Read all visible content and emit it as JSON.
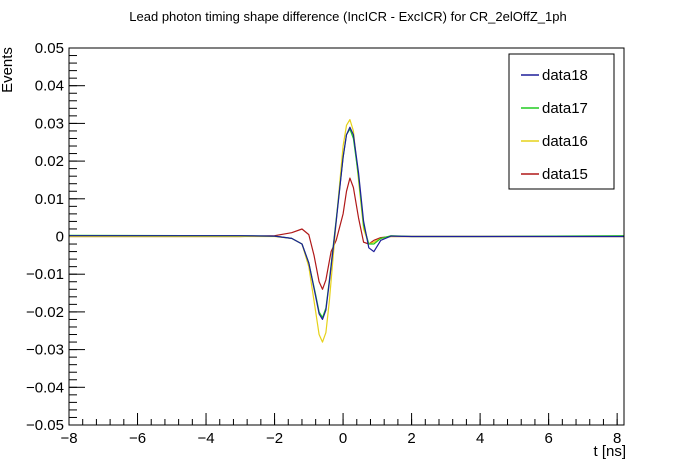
{
  "chart_data": {
    "type": "line",
    "title": "Lead photon timing shape difference (IncICR - ExcICR) for CR_2elOffZ_1ph",
    "xlabel": "t [ns]",
    "ylabel": "Events",
    "xlim": [
      -8,
      8.2
    ],
    "ylim": [
      -0.05,
      0.05
    ],
    "x_ticks": [
      -8,
      -6,
      -4,
      -2,
      0,
      2,
      4,
      6,
      8
    ],
    "y_ticks": [
      -0.05,
      -0.04,
      -0.03,
      -0.02,
      -0.01,
      0,
      0.01,
      0.02,
      0.03,
      0.04,
      0.05
    ],
    "x_tick_labels": [
      "−8",
      "−6",
      "−4",
      "−2",
      "0",
      "2",
      "4",
      "6",
      "8"
    ],
    "y_tick_labels": [
      "−0.05",
      "−0.04",
      "−0.03",
      "−0.02",
      "−0.01",
      "0",
      "0.01",
      "0.02",
      "0.03",
      "0.04",
      "0.05"
    ],
    "grid": false,
    "legend_position": "top-right",
    "series": [
      {
        "name": "data18",
        "color": "#1e1e9a",
        "x": [
          -8,
          -3,
          -2,
          -1.5,
          -1.2,
          -1.0,
          -0.8,
          -0.7,
          -0.6,
          -0.5,
          -0.4,
          -0.2,
          0,
          0.1,
          0.2,
          0.3,
          0.45,
          0.6,
          0.75,
          0.9,
          1.1,
          1.4,
          2,
          4,
          8.2
        ],
        "y": [
          0.0002,
          0.0002,
          0.0001,
          -0.0005,
          -0.002,
          -0.007,
          -0.016,
          -0.0205,
          -0.022,
          -0.0195,
          -0.012,
          0.004,
          0.021,
          0.027,
          0.029,
          0.027,
          0.017,
          0.004,
          -0.003,
          -0.004,
          -0.001,
          0.0001,
          0,
          0,
          0
        ]
      },
      {
        "name": "data17",
        "color": "#22cc22",
        "x": [
          -8,
          -3,
          -2,
          -1.5,
          -1.2,
          -1.0,
          -0.8,
          -0.7,
          -0.6,
          -0.5,
          -0.4,
          -0.2,
          0,
          0.1,
          0.2,
          0.3,
          0.45,
          0.6,
          0.75,
          0.9,
          1.1,
          1.4,
          2,
          4,
          8.2
        ],
        "y": [
          0.0003,
          0.0002,
          0.0001,
          -0.0005,
          -0.002,
          -0.007,
          -0.0155,
          -0.02,
          -0.0215,
          -0.019,
          -0.0115,
          0.0045,
          0.021,
          0.027,
          0.0285,
          0.026,
          0.016,
          0.003,
          -0.002,
          -0.002,
          -0.0005,
          0.0002,
          0,
          0,
          0.0002
        ]
      },
      {
        "name": "data16",
        "color": "#e6d21a",
        "x": [
          -8,
          -3,
          -2,
          -1.5,
          -1.2,
          -1.0,
          -0.8,
          -0.7,
          -0.6,
          -0.5,
          -0.4,
          -0.2,
          0,
          0.1,
          0.2,
          0.3,
          0.45,
          0.6,
          0.75,
          0.9,
          1.1,
          1.4,
          2,
          4,
          8.2
        ],
        "y": [
          0,
          0,
          0,
          -0.0005,
          -0.002,
          -0.008,
          -0.02,
          -0.026,
          -0.028,
          -0.0255,
          -0.017,
          0.004,
          0.024,
          0.0295,
          0.031,
          0.028,
          0.015,
          0.002,
          -0.002,
          -0.0015,
          -0.0005,
          0,
          0,
          0,
          0
        ]
      },
      {
        "name": "data15",
        "color": "#b01818",
        "x": [
          -8,
          -3,
          -2,
          -1.5,
          -1.2,
          -1.0,
          -0.85,
          -0.7,
          -0.6,
          -0.5,
          -0.35,
          -0.2,
          0,
          0.1,
          0.2,
          0.3,
          0.45,
          0.6,
          0.75,
          0.9,
          1.1,
          1.4,
          2,
          4,
          8.2
        ],
        "y": [
          0,
          0,
          0.0002,
          0.001,
          0.002,
          0.0005,
          -0.005,
          -0.012,
          -0.014,
          -0.0115,
          -0.004,
          -0.001,
          0.006,
          0.012,
          0.0155,
          0.013,
          0.005,
          -0.0015,
          -0.002,
          -0.001,
          -0.0003,
          0,
          0,
          0,
          0
        ]
      }
    ]
  }
}
